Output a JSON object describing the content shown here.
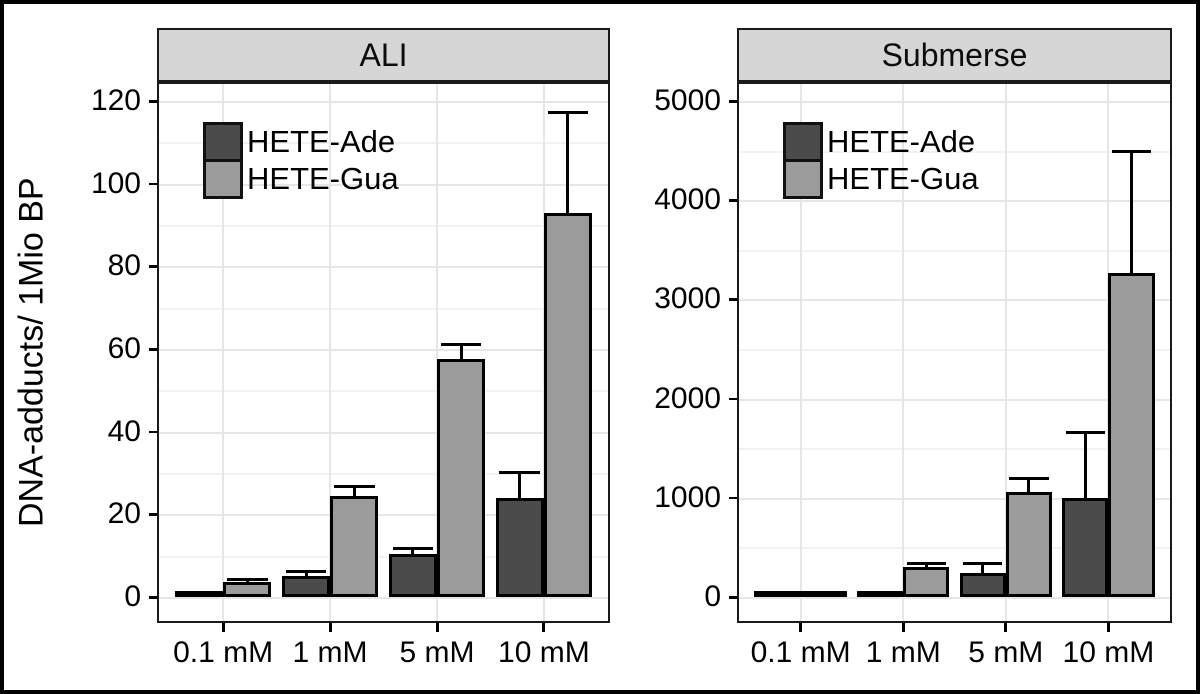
{
  "figure": {
    "ylabel": "DNA-adducts/ 1Mio BP",
    "legend_labels": [
      "HETE-Ade",
      "HETE-Gua"
    ],
    "colors": {
      "bar_ade": "#4b4b4b",
      "bar_gua": "#9b9b9b",
      "strip_bg": "#d6d6d6",
      "grid_major": "#e6e6e6",
      "grid_minor": "#f2f2f2",
      "outline": "#000000"
    }
  },
  "chart_data": [
    {
      "type": "bar",
      "title": "ALI",
      "categories": [
        "0.1 mM",
        "1 mM",
        "5 mM",
        "10 mM"
      ],
      "xlabel": "",
      "ylabel": "DNA-adducts/ 1Mio BP",
      "ylim": [
        0,
        120
      ],
      "yticks": [
        0,
        20,
        40,
        60,
        80,
        100,
        120
      ],
      "minor_step": 10,
      "grid": true,
      "legend_position": "top-left",
      "series": [
        {
          "name": "HETE-Ade",
          "values": [
            0.4,
            5,
            10.5,
            24
          ],
          "errors_plus": [
            0,
            1.5,
            1.5,
            6.5
          ]
        },
        {
          "name": "HETE-Gua",
          "values": [
            3.6,
            24.5,
            57.5,
            93
          ],
          "errors_plus": [
            0.9,
            2.5,
            4,
            24.5
          ]
        }
      ]
    },
    {
      "type": "bar",
      "title": "Submerse",
      "categories": [
        "0.1 mM",
        "1 mM",
        "5 mM",
        "10 mM"
      ],
      "xlabel": "",
      "ylabel": "DNA-adducts/ 1Mio BP",
      "ylim": [
        0,
        5000
      ],
      "yticks": [
        0,
        1000,
        2000,
        3000,
        4000,
        5000
      ],
      "minor_step": 500,
      "grid": true,
      "legend_position": "top-left",
      "series": [
        {
          "name": "HETE-Ade",
          "values": [
            10,
            45,
            245,
            1000
          ],
          "errors_plus": [
            0,
            0,
            105,
            670
          ]
        },
        {
          "name": "HETE-Gua",
          "values": [
            20,
            300,
            1060,
            3270
          ],
          "errors_plus": [
            0,
            55,
            150,
            1240
          ]
        }
      ]
    }
  ]
}
